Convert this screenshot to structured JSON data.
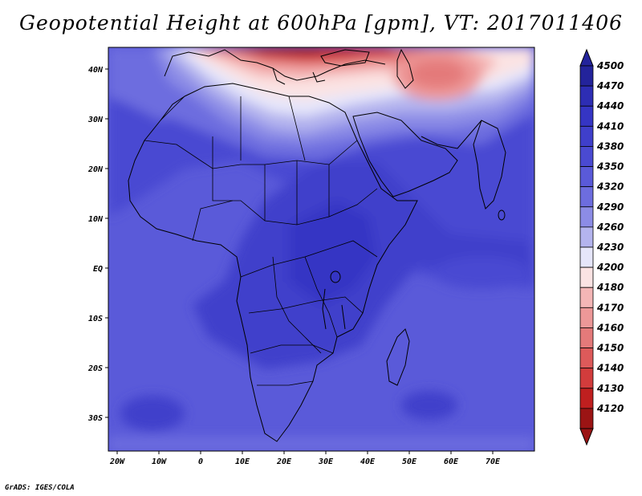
{
  "title": "Geopotential Height at 600hPa [gpm], VT: 2017011406",
  "footer": "GrADS: IGES/COLA",
  "map": {
    "lon_labels": [
      "20W",
      "10W",
      "0",
      "10E",
      "20E",
      "30E",
      "40E",
      "50E",
      "60E",
      "70E"
    ],
    "lat_labels": [
      "40N",
      "30N",
      "20N",
      "10N",
      "EQ",
      "10S",
      "20S",
      "30S"
    ]
  },
  "colorbar": {
    "levels": [
      "4500",
      "4470",
      "4440",
      "4410",
      "4380",
      "4350",
      "4320",
      "4290",
      "4260",
      "4230",
      "4200",
      "4180",
      "4170",
      "4160",
      "4150",
      "4140",
      "4130",
      "4120"
    ],
    "colors": [
      "#23239b",
      "#2d2db4",
      "#3535c4",
      "#3f3fcb",
      "#4a4ad2",
      "#5a5ad9",
      "#6d6ddf",
      "#8c8ce6",
      "#b4b4ee",
      "#e6e6fa",
      "#fbe3e3",
      "#f4b6b6",
      "#ed9898",
      "#e47a7a",
      "#dd5a5a",
      "#d23c3c",
      "#bf1f1f",
      "#9b1414"
    ]
  }
}
